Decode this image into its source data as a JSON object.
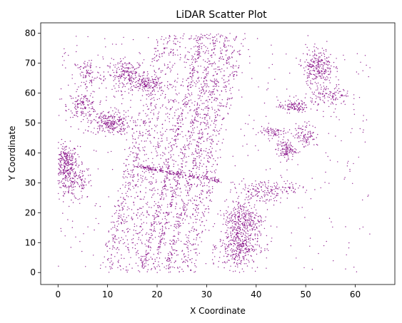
{
  "chart_data": {
    "type": "scatter",
    "title": "LiDAR Scatter Plot",
    "xlabel": "X Coordinate",
    "ylabel": "Y Coordinate",
    "xlim": [
      -3.5,
      68
    ],
    "ylim": [
      -4,
      83.5
    ],
    "xticks": [
      0,
      10,
      20,
      30,
      40,
      50,
      60
    ],
    "yticks": [
      0,
      10,
      20,
      30,
      40,
      50,
      60,
      70,
      80
    ],
    "grid": false,
    "marker_color": "#800080",
    "series": [
      {
        "clusters": [
          {
            "cx": 1.5,
            "cy": 37,
            "sx": 1.2,
            "sy": 3,
            "n": 260
          },
          {
            "cx": 3,
            "cy": 30,
            "sx": 2,
            "sy": 3,
            "n": 180
          },
          {
            "cx": 5,
            "cy": 56,
            "sx": 1.5,
            "sy": 2,
            "n": 130
          },
          {
            "cx": 6,
            "cy": 66,
            "sx": 1.5,
            "sy": 3,
            "n": 90
          },
          {
            "cx": 10.5,
            "cy": 50,
            "sx": 2,
            "sy": 2,
            "n": 260
          },
          {
            "cx": 14,
            "cy": 66,
            "sx": 2,
            "sy": 2.5,
            "n": 230
          },
          {
            "cx": 18,
            "cy": 63,
            "sx": 1.5,
            "sy": 1.5,
            "n": 110
          },
          {
            "cx": 36.5,
            "cy": 9,
            "sx": 2,
            "sy": 4,
            "n": 380
          },
          {
            "cx": 37.5,
            "cy": 18,
            "sx": 2,
            "sy": 3,
            "n": 260
          },
          {
            "cx": 41,
            "cy": 27,
            "sx": 2.5,
            "sy": 2,
            "n": 150
          },
          {
            "cx": 46,
            "cy": 41,
            "sx": 1,
            "sy": 1.5,
            "n": 120
          },
          {
            "cx": 43,
            "cy": 47,
            "sx": 1.5,
            "sy": 1,
            "n": 70
          },
          {
            "cx": 47.5,
            "cy": 55.5,
            "sx": 1.5,
            "sy": 1,
            "n": 110
          },
          {
            "cx": 50,
            "cy": 46,
            "sx": 1,
            "sy": 2,
            "n": 90
          },
          {
            "cx": 52.5,
            "cy": 69,
            "sx": 1.5,
            "sy": 3,
            "n": 250
          },
          {
            "cx": 55,
            "cy": 59,
            "sx": 2,
            "sy": 2,
            "n": 120
          },
          {
            "cx": 47,
            "cy": 28,
            "sx": 2,
            "sy": 1,
            "n": 40
          }
        ],
        "lines": [
          {
            "x1": 16,
            "y1": 35.5,
            "x2": 33,
            "y2": 30.5,
            "n": 180
          },
          {
            "x1": 17,
            "y1": 0.5,
            "x2": 29,
            "y2": 79,
            "n": 220
          },
          {
            "x1": 19,
            "y1": 0.5,
            "x2": 32,
            "y2": 79,
            "n": 200
          },
          {
            "x1": 22,
            "y1": 0.5,
            "x2": 34,
            "y2": 79,
            "n": 180
          },
          {
            "x1": 25,
            "y1": 0.5,
            "x2": 36,
            "y2": 79,
            "n": 100
          },
          {
            "x1": 10,
            "y1": 2,
            "x2": 22,
            "y2": 79,
            "n": 120
          }
        ],
        "band": {
          "x_at_y0_min": 8,
          "x_at_y0_max": 28,
          "x_at_y80_min": 20,
          "x_at_y80_max": 38,
          "n": 1500
        },
        "background_n": 500
      }
    ]
  }
}
